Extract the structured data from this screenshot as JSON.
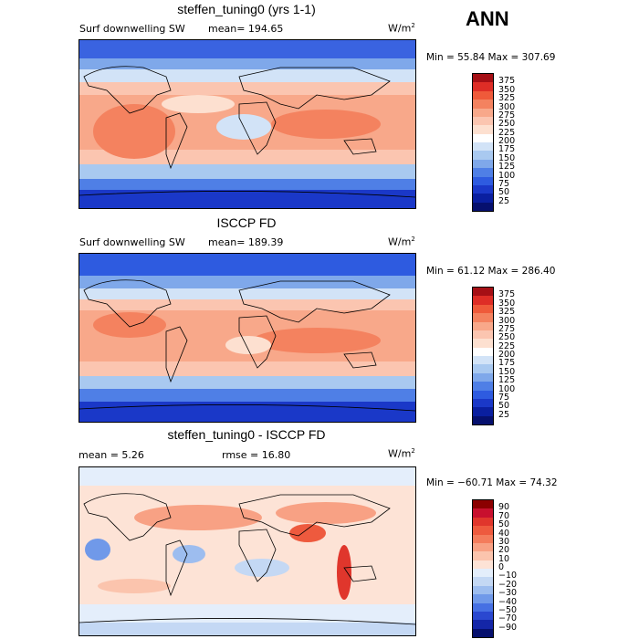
{
  "season": "ANN",
  "panels": [
    {
      "title": "steffen_tuning0 (yrs 1-1)",
      "variable": "Surf downwelling SW",
      "stat1": "mean= 194.65",
      "stat2": "",
      "units": "W/m",
      "units_sup": "2",
      "minmax": "Min =  55.84 Max = 307.69",
      "levels": [
        "375",
        "350",
        "325",
        "300",
        "275",
        "250",
        "225",
        "200",
        "175",
        "150",
        "125",
        "100",
        "75",
        "50",
        "25"
      ],
      "colors": [
        "#a50f15",
        "#de2d26",
        "#ef5a3a",
        "#f4825f",
        "#f8a88a",
        "#fbc5b0",
        "#fde0d0",
        "#ffffff",
        "#d2e3f7",
        "#a9c9f0",
        "#7fa8ea",
        "#4f7fe6",
        "#2e5be0",
        "#1a38c8",
        "#0a1fa0",
        "#06106e"
      ]
    },
    {
      "title": "ISCCP FD",
      "variable": "Surf downwelling SW",
      "stat1": "mean= 189.39",
      "stat2": "",
      "units": "W/m",
      "units_sup": "2",
      "minmax": "Min =  61.12 Max = 286.40",
      "levels": [
        "375",
        "350",
        "325",
        "300",
        "275",
        "250",
        "225",
        "200",
        "175",
        "150",
        "125",
        "100",
        "75",
        "50",
        "25"
      ],
      "colors": [
        "#a50f15",
        "#de2d26",
        "#ef5a3a",
        "#f4825f",
        "#f8a88a",
        "#fbc5b0",
        "#fde0d0",
        "#ffffff",
        "#d2e3f7",
        "#a9c9f0",
        "#7fa8ea",
        "#4f7fe6",
        "#2e5be0",
        "#1a38c8",
        "#0a1fa0",
        "#06106e"
      ]
    },
    {
      "title": "steffen_tuning0 - ISCCP FD",
      "variable": "",
      "stat1": "mean =   5.26",
      "stat2": "rmse =  16.80",
      "units": "W/m",
      "units_sup": "2",
      "minmax": "Min = −60.71 Max =  74.32",
      "levels": [
        "90",
        "70",
        "50",
        "40",
        "30",
        "20",
        "10",
        "0",
        "−10",
        "−20",
        "−30",
        "−40",
        "−50",
        "−70",
        "−90"
      ],
      "colors": [
        "#8b0000",
        "#c8102e",
        "#e0362c",
        "#ee5a3e",
        "#f47c5c",
        "#f8a184",
        "#fbc4ad",
        "#fde3d6",
        "#e4eefb",
        "#c4d8f4",
        "#9dbdef",
        "#7099e9",
        "#4670e3",
        "#2a48d0",
        "#1426a8",
        "#06106e"
      ]
    }
  ]
}
